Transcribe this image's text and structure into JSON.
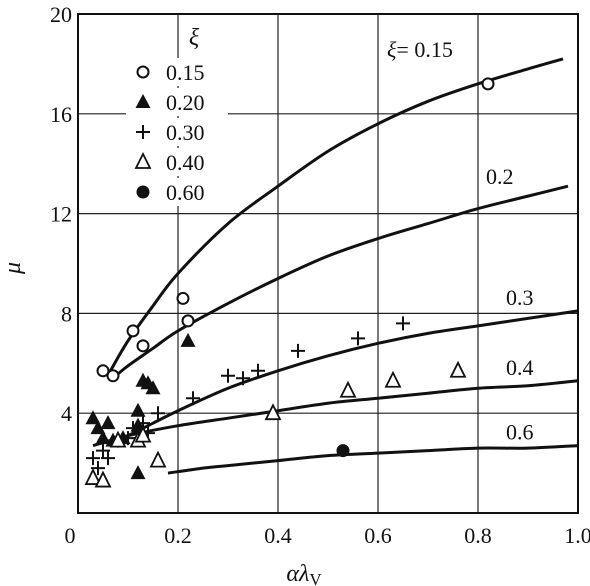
{
  "chart_data": {
    "type": "scatter",
    "title": "",
    "xlabel": "αλ",
    "xlabel_sub": "V",
    "ylabel": "μ",
    "xlim": [
      0,
      1.0
    ],
    "ylim": [
      0,
      20
    ],
    "x_ticks": [
      0,
      0.2,
      0.4,
      0.6,
      0.8,
      1.0
    ],
    "x_tick_labels": [
      "0",
      "0.2",
      "0.4",
      "0.6",
      "0.8",
      "1.0"
    ],
    "y_ticks": [
      0,
      4,
      8,
      12,
      16,
      20
    ],
    "y_tick_labels": [
      "0",
      "4",
      "8",
      "12",
      "16",
      "20"
    ],
    "grid": true,
    "legend": {
      "title": "ξ",
      "placement": "top-left",
      "entries": [
        {
          "label": "0.15",
          "marker": "open-circle"
        },
        {
          "label": "0.20",
          "marker": "filled-triangle"
        },
        {
          "label": "0.30",
          "marker": "plus"
        },
        {
          "label": "0.40",
          "marker": "open-triangle"
        },
        {
          "label": "0.60",
          "marker": "filled-circle"
        }
      ]
    },
    "curves": [
      {
        "label": "ξ= 0.15",
        "x": [
          0.065,
          0.1,
          0.15,
          0.2,
          0.3,
          0.4,
          0.5,
          0.6,
          0.7,
          0.8,
          0.9,
          0.97
        ],
        "y": [
          5.7,
          6.9,
          8.3,
          9.6,
          11.6,
          13.1,
          14.5,
          15.6,
          16.5,
          17.2,
          17.8,
          18.2
        ]
      },
      {
        "label": "0.2",
        "x": [
          0.07,
          0.1,
          0.15,
          0.2,
          0.3,
          0.4,
          0.5,
          0.6,
          0.7,
          0.8,
          0.9,
          0.98
        ],
        "y": [
          5.4,
          5.9,
          6.6,
          7.3,
          8.4,
          9.4,
          10.3,
          11.0,
          11.6,
          12.2,
          12.7,
          13.1
        ]
      },
      {
        "label": "0.3",
        "x": [
          0.1,
          0.15,
          0.2,
          0.3,
          0.4,
          0.5,
          0.6,
          0.7,
          0.8,
          0.9,
          1.0
        ],
        "y": [
          3.1,
          3.6,
          4.1,
          5.0,
          5.7,
          6.3,
          6.8,
          7.2,
          7.5,
          7.8,
          8.1
        ]
      },
      {
        "label": "0.4",
        "x": [
          0.03,
          0.1,
          0.2,
          0.3,
          0.4,
          0.5,
          0.6,
          0.7,
          0.8,
          0.9,
          1.0
        ],
        "y": [
          2.7,
          3.1,
          3.5,
          3.8,
          4.1,
          4.4,
          4.6,
          4.8,
          5.0,
          5.1,
          5.3
        ]
      },
      {
        "label": "0.6",
        "x": [
          0.18,
          0.25,
          0.3,
          0.4,
          0.5,
          0.6,
          0.7,
          0.8,
          0.9,
          1.0
        ],
        "y": [
          1.6,
          1.8,
          1.9,
          2.1,
          2.3,
          2.4,
          2.5,
          2.6,
          2.6,
          2.7
        ]
      }
    ],
    "series": [
      {
        "name": "0.15",
        "marker": "open-circle",
        "x": [
          0.05,
          0.07,
          0.11,
          0.13,
          0.21,
          0.22,
          0.82
        ],
        "y": [
          5.7,
          5.5,
          7.3,
          6.7,
          8.6,
          7.7,
          17.2
        ]
      },
      {
        "name": "0.20",
        "marker": "filled-triangle",
        "x": [
          0.03,
          0.04,
          0.05,
          0.06,
          0.07,
          0.09,
          0.12,
          0.12,
          0.13,
          0.14,
          0.15,
          0.22,
          0.12
        ],
        "y": [
          3.8,
          3.4,
          3.0,
          3.6,
          2.9,
          3.0,
          4.1,
          3.5,
          5.3,
          5.2,
          5.0,
          6.9,
          1.6
        ]
      },
      {
        "name": "0.30",
        "marker": "plus",
        "x": [
          0.03,
          0.04,
          0.05,
          0.06,
          0.08,
          0.1,
          0.11,
          0.12,
          0.13,
          0.14,
          0.16,
          0.23,
          0.3,
          0.33,
          0.36,
          0.44,
          0.56,
          0.65
        ],
        "y": [
          2.2,
          1.8,
          2.5,
          2.2,
          2.9,
          3.0,
          3.4,
          3.0,
          3.6,
          3.2,
          4.0,
          4.6,
          5.5,
          5.4,
          5.7,
          6.5,
          7.0,
          7.6
        ]
      },
      {
        "name": "0.40",
        "marker": "open-triangle",
        "x": [
          0.03,
          0.05,
          0.08,
          0.12,
          0.13,
          0.16,
          0.39,
          0.54,
          0.63,
          0.76
        ],
        "y": [
          1.4,
          1.3,
          2.9,
          2.9,
          3.1,
          2.1,
          4.0,
          4.9,
          5.3,
          5.7
        ]
      },
      {
        "name": "0.60",
        "marker": "filled-circle",
        "x": [
          0.53
        ],
        "y": [
          2.5
        ]
      }
    ]
  }
}
